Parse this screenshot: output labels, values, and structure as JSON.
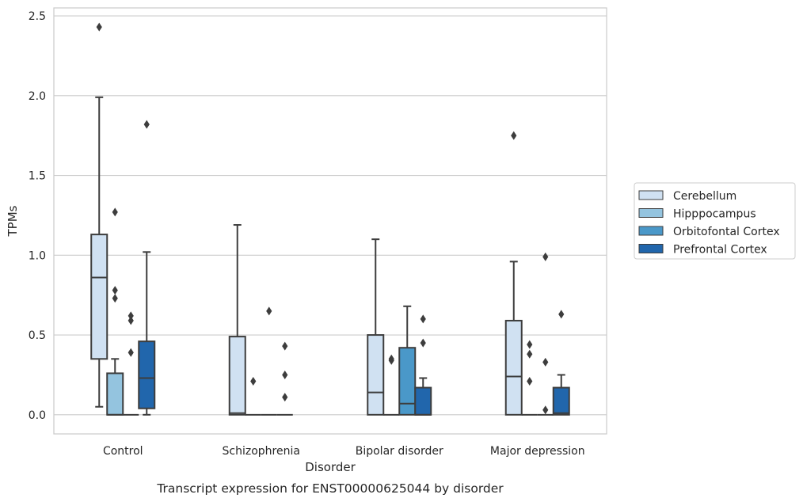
{
  "chart_data": {
    "type": "box",
    "caption": "Transcript expression for ENST00000625044 by disorder",
    "xlabel": "Disorder",
    "ylabel": "TPMs",
    "ylim": [
      -0.12,
      2.55
    ],
    "yticks": [
      "0.0",
      "0.5",
      "1.0",
      "1.5",
      "2.0",
      "2.5"
    ],
    "ytick_values": [
      0.0,
      0.5,
      1.0,
      1.5,
      2.0,
      2.5
    ],
    "grid": true,
    "legend_position": "right",
    "categories": [
      "Control",
      "Schizophrenia",
      "Bipolar disorder",
      "Major depression"
    ],
    "series": [
      {
        "name": "Cerebellum",
        "color": "#d0e1f2",
        "boxes": [
          {
            "q1": 0.35,
            "median": 0.86,
            "q3": 1.13,
            "whisker_low": 0.05,
            "whisker_high": 1.99,
            "outliers": [
              2.43
            ]
          },
          {
            "q1": 0.0,
            "median": 0.01,
            "q3": 0.49,
            "whisker_low": 0.0,
            "whisker_high": 1.19,
            "outliers": []
          },
          {
            "q1": 0.0,
            "median": 0.14,
            "q3": 0.5,
            "whisker_low": 0.0,
            "whisker_high": 1.1,
            "outliers": []
          },
          {
            "q1": 0.0,
            "median": 0.24,
            "q3": 0.59,
            "whisker_low": 0.0,
            "whisker_high": 0.96,
            "outliers": [
              1.75
            ]
          }
        ]
      },
      {
        "name": "Hipppocampus",
        "color": "#94c4df",
        "boxes": [
          {
            "q1": 0.0,
            "median": 0.0,
            "q3": 0.26,
            "whisker_low": 0.0,
            "whisker_high": 0.35,
            "outliers": [
              1.27,
              0.78,
              0.73
            ]
          },
          {
            "q1": 0.0,
            "median": 0.0,
            "q3": 0.0,
            "whisker_low": 0.0,
            "whisker_high": 0.0,
            "outliers": [
              0.21
            ]
          },
          {
            "q1": 0.0,
            "median": 0.0,
            "q3": 0.0,
            "whisker_low": 0.0,
            "whisker_high": 0.0,
            "outliers": [
              0.35,
              0.34
            ]
          },
          {
            "q1": 0.0,
            "median": 0.0,
            "q3": 0.0,
            "whisker_low": 0.0,
            "whisker_high": 0.0,
            "outliers": [
              0.44,
              0.38,
              0.21
            ]
          }
        ]
      },
      {
        "name": "Orbitofontal Cortex",
        "color": "#4a98c9",
        "boxes": [
          {
            "q1": 0.0,
            "median": 0.0,
            "q3": 0.0,
            "whisker_low": 0.0,
            "whisker_high": 0.0,
            "outliers": [
              0.62,
              0.59,
              0.39
            ]
          },
          {
            "q1": 0.0,
            "median": 0.0,
            "q3": 0.0,
            "whisker_low": 0.0,
            "whisker_high": 0.0,
            "outliers": [
              0.65
            ]
          },
          {
            "q1": 0.0,
            "median": 0.07,
            "q3": 0.42,
            "whisker_low": 0.0,
            "whisker_high": 0.68,
            "outliers": []
          },
          {
            "q1": 0.0,
            "median": 0.0,
            "q3": 0.0,
            "whisker_low": 0.0,
            "whisker_high": 0.0,
            "outliers": [
              0.99,
              0.33,
              0.03
            ]
          }
        ]
      },
      {
        "name": "Prefrontal Cortex",
        "color": "#2166ac",
        "boxes": [
          {
            "q1": 0.04,
            "median": 0.23,
            "q3": 0.46,
            "whisker_low": 0.0,
            "whisker_high": 1.02,
            "outliers": [
              1.82
            ]
          },
          {
            "q1": 0.0,
            "median": 0.0,
            "q3": 0.0,
            "whisker_low": 0.0,
            "whisker_high": 0.0,
            "outliers": [
              0.43,
              0.25,
              0.11
            ]
          },
          {
            "q1": 0.0,
            "median": 0.0,
            "q3": 0.17,
            "whisker_low": 0.0,
            "whisker_high": 0.23,
            "outliers": [
              0.6,
              0.45
            ]
          },
          {
            "q1": 0.0,
            "median": 0.01,
            "q3": 0.17,
            "whisker_low": 0.0,
            "whisker_high": 0.25,
            "outliers": [
              0.63
            ]
          }
        ]
      }
    ]
  }
}
